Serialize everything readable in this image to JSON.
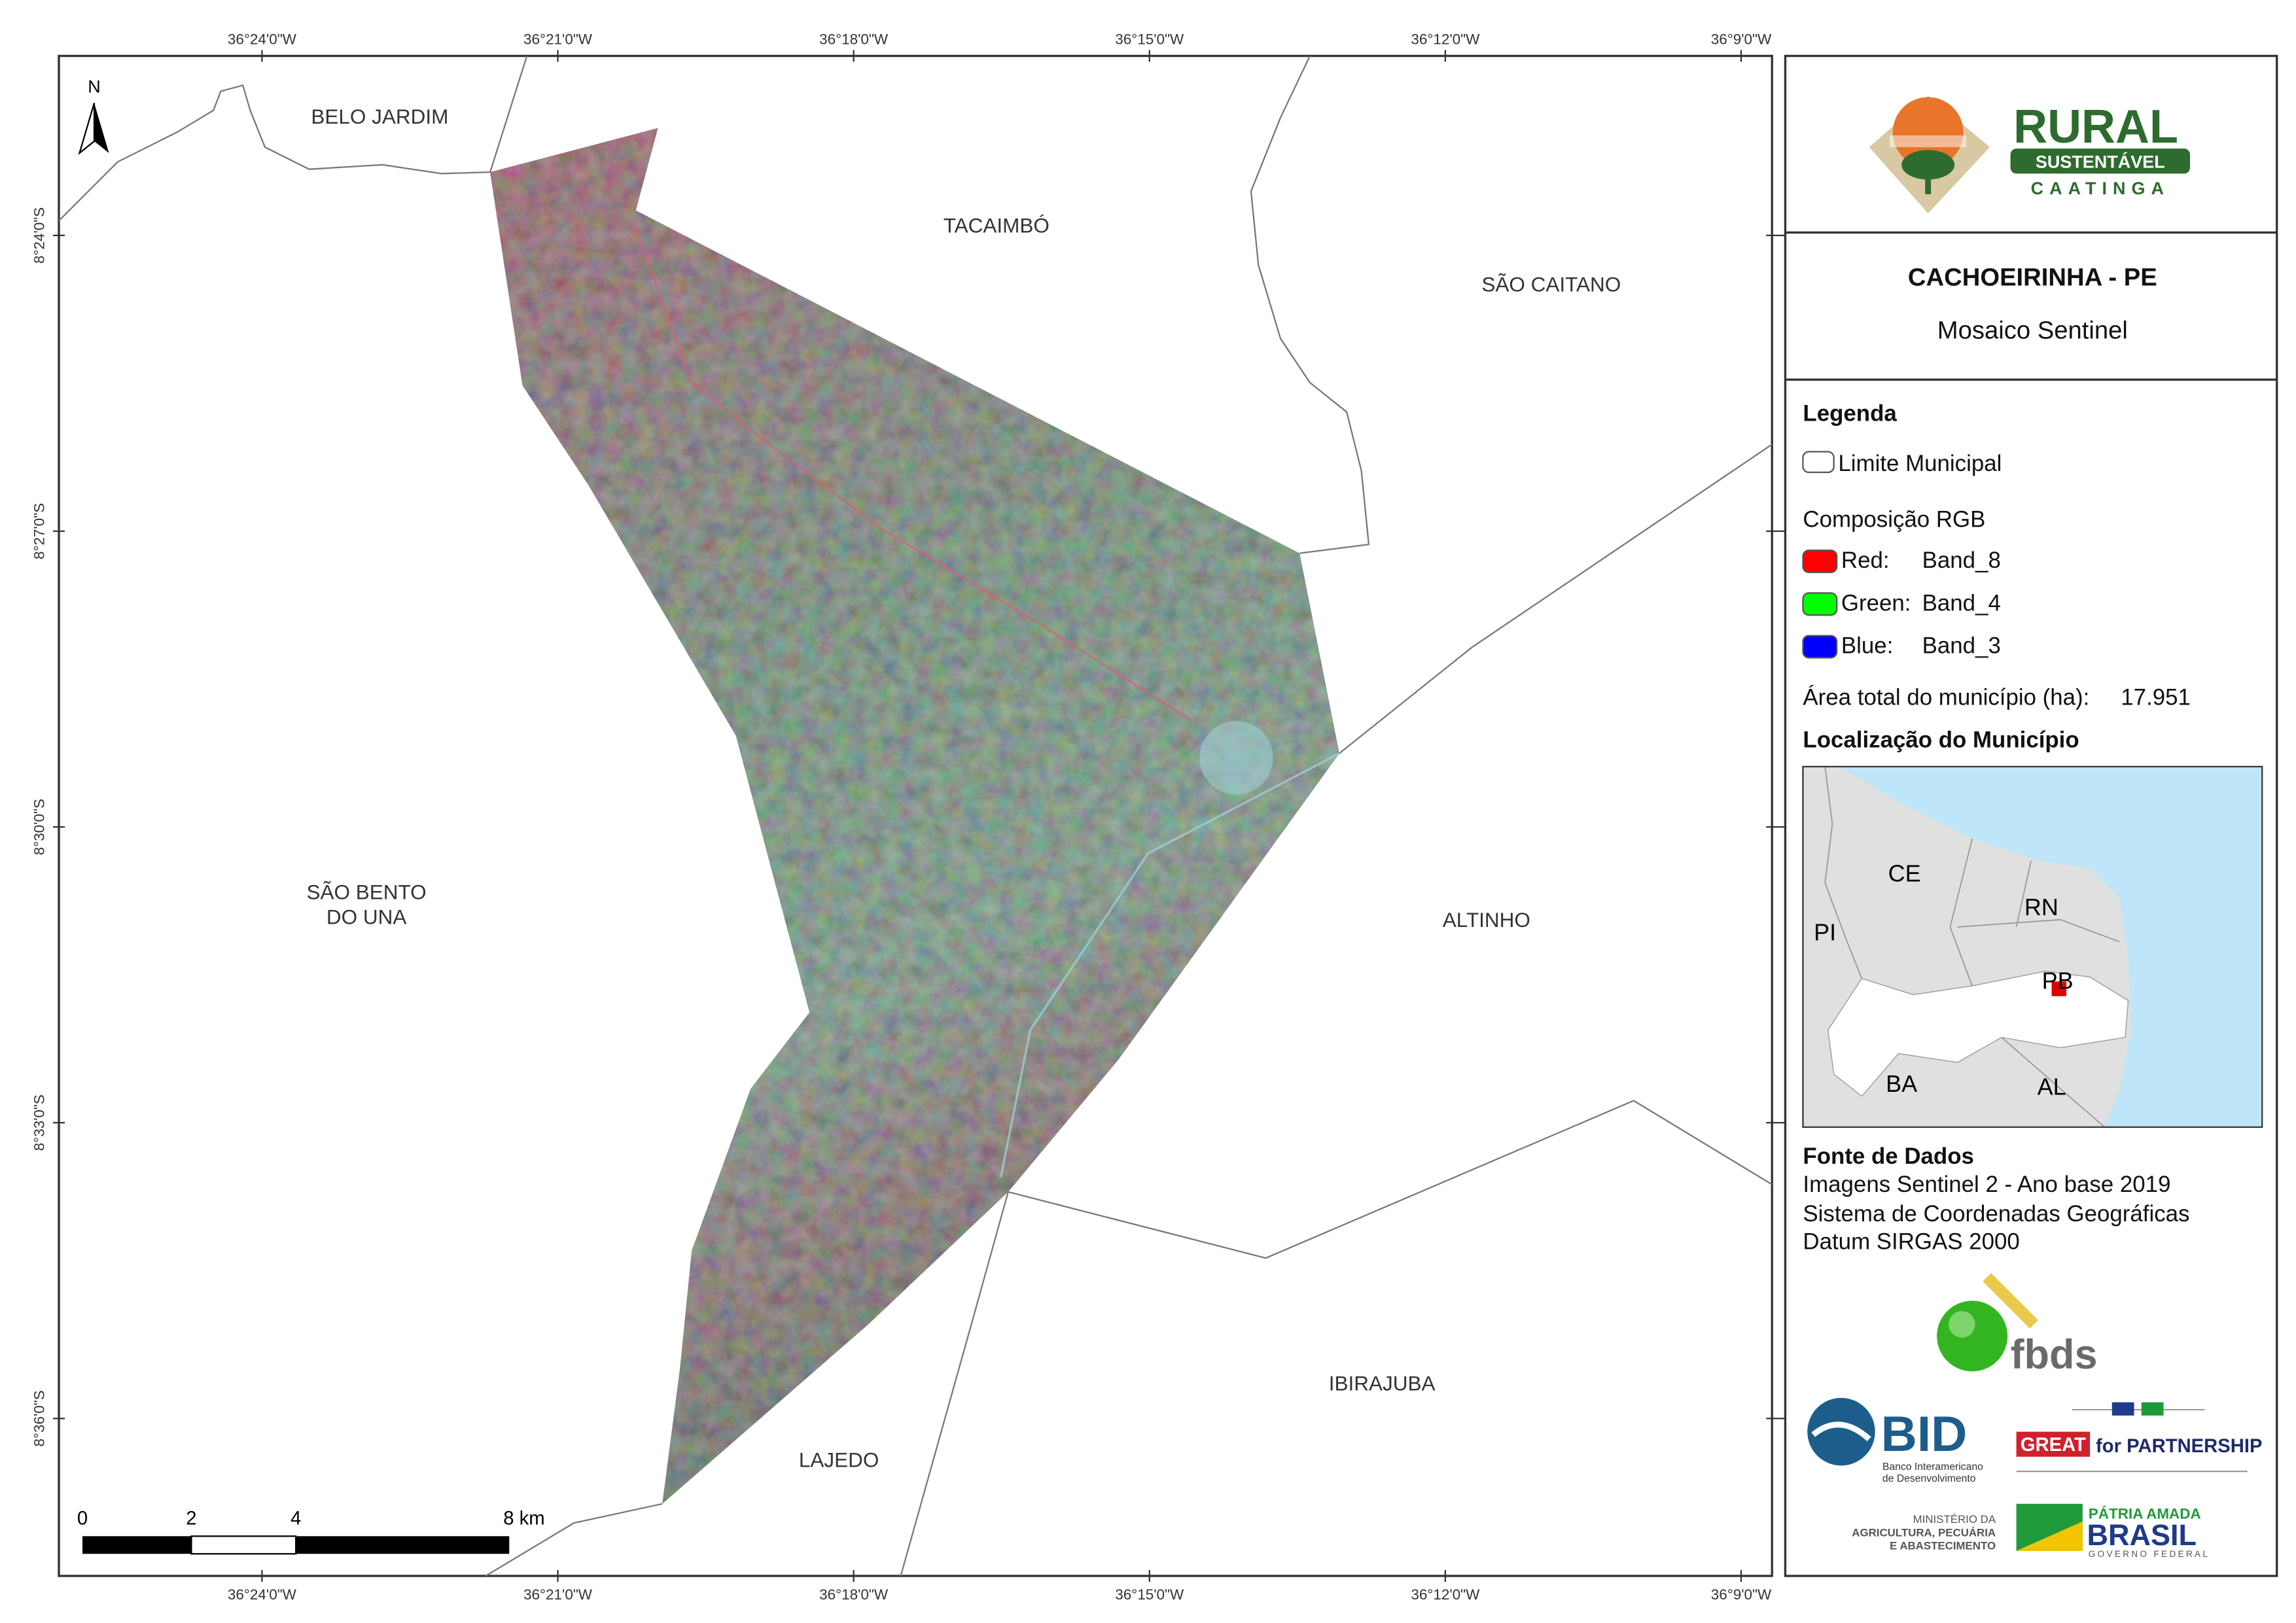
{
  "map": {
    "lon_labels": [
      "36°24'0\"W",
      "36°21'0\"W",
      "36°18'0\"W",
      "36°15'0\"W",
      "36°12'0\"W",
      "36°9'0\"W"
    ],
    "lat_labels": [
      "8°24'0\"S",
      "8°27'0\"S",
      "8°30'0\"S",
      "8°33'0\"S",
      "8°36'0\"S"
    ],
    "places": {
      "belo_jardim": "BELO JARDIM",
      "tacaimbo": "TACAIMBÓ",
      "sao_caitano": "SÃO CAITANO",
      "sao_bento": [
        "SÃO BENTO",
        "DO UNA"
      ],
      "altinho": "ALTINHO",
      "ibirajuba": "IBIRAJUBA",
      "lajedo": "LAJEDO"
    },
    "north": "N",
    "scale_labels": [
      "0",
      "2",
      "4",
      "8 km"
    ]
  },
  "panel": {
    "logo": {
      "title": "RURAL",
      "subtitle": "SUSTENTÁVEL",
      "tagline": "CAATINGA"
    },
    "title": "CACHOEIRINHA - PE",
    "subtitle": "Mosaico Sentinel",
    "legend": {
      "heading": "Legenda",
      "boundary": "Limite Municipal",
      "rgb_heading": "Composição RGB",
      "bands": [
        {
          "channel": "Red:",
          "band": "Band_8",
          "color": "#ff0000"
        },
        {
          "channel": "Green:",
          "band": "Band_4",
          "color": "#00ff00"
        },
        {
          "channel": "Blue:",
          "band": "Band_3",
          "color": "#0000ff"
        }
      ],
      "area_label": "Área total do município (ha):",
      "area_value": "17.951"
    },
    "location": {
      "heading": "Localização do Município",
      "states": {
        "ce": "CE",
        "rn": "RN",
        "pi": "PI",
        "pb": "PB",
        "ba": "BA",
        "al": "AL"
      }
    },
    "sources": {
      "heading": "Fonte de Dados",
      "lines": [
        "Imagens Sentinel 2 - Ano base 2019",
        "Sistema de Coordenadas Geográficas",
        "Datum SIRGAS 2000"
      ]
    },
    "logos": {
      "fbds": "fbds",
      "bid": "BID",
      "bid_name": [
        "Banco Interamericano",
        "de Desenvolvimento"
      ],
      "great": "GREAT",
      "partnership": "for PARTNERSHIP",
      "ministry": [
        "MINISTÉRIO DA",
        "AGRICULTURA, PECUÁRIA",
        "E ABASTECIMENTO"
      ],
      "brasil": [
        "PÁTRIA AMADA",
        "BRASIL",
        "GOVERNO FEDERAL"
      ]
    }
  }
}
